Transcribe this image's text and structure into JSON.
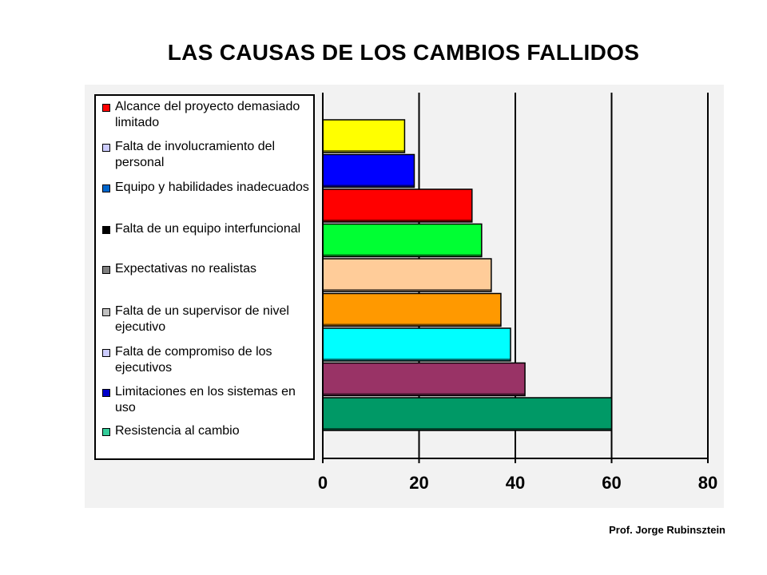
{
  "title": "LAS CAUSAS DE LOS CAMBIOS FALLIDOS",
  "footer": "Prof. Jorge Rubinsztein",
  "legend": [
    {
      "label": "Alcance del proyecto demasiado limitado",
      "color": "#ff0000"
    },
    {
      "label": "Falta de involucramiento del personal",
      "color": "#ccccff"
    },
    {
      "label": "Equipo y habilidades inadecuados",
      "color": "#0066cc"
    },
    {
      "label": "Falta de un equipo interfuncional",
      "color": "#000000"
    },
    {
      "label": "Expectativas no realistas",
      "color": "#808080"
    },
    {
      "label": "Falta de un supervisor de nivel ejecutivo",
      "color": "#c0c0c0"
    },
    {
      "label": "Falta de compromiso de los ejecutivos",
      "color": "#ccccff"
    },
    {
      "label": "Limitaciones en los sistemas en uso",
      "color": "#0000cc"
    },
    {
      "label": "Resistencia al cambio",
      "color": "#33cc99"
    }
  ],
  "chart_data": {
    "type": "bar",
    "orientation": "horizontal",
    "categories": [
      "",
      "",
      "",
      "",
      "",
      "",
      "",
      "",
      ""
    ],
    "values": [
      17,
      19,
      31,
      33,
      35,
      37,
      39,
      42,
      60
    ],
    "colors": [
      "#ffff00",
      "#0000ff",
      "#ff0000",
      "#00ff33",
      "#ffcc99",
      "#ff9900",
      "#00ffff",
      "#993366",
      "#009966"
    ],
    "xlim": [
      0,
      80
    ],
    "xticks": [
      "0",
      "20",
      "40",
      "60",
      "80"
    ],
    "grid": true,
    "legend_position": "left"
  }
}
